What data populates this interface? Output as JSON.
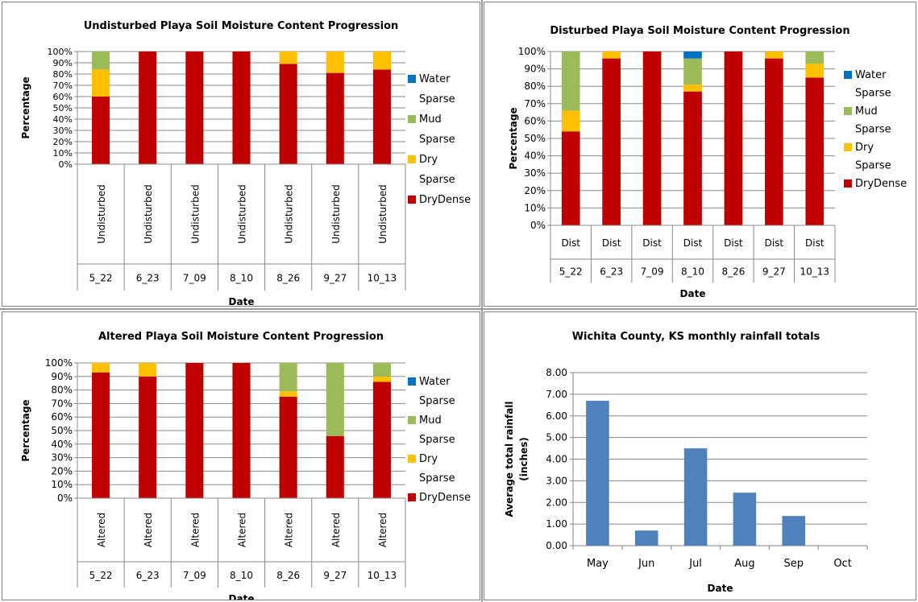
{
  "chart_data": [
    {
      "type": "bar",
      "stacked": true,
      "title": "Undisturbed Playa Soil Moisture Content Progression",
      "xlabel": "Date",
      "ylabel": "Percentage",
      "ylim": [
        0,
        100
      ],
      "yticks": [
        "0%",
        "10%",
        "20%",
        "30%",
        "40%",
        "50%",
        "60%",
        "70%",
        "80%",
        "90%",
        "100%"
      ],
      "group_label": "Undisturbed",
      "categories": [
        "5_22",
        "6_23",
        "7_09",
        "8_10",
        "8_26",
        "9_27",
        "10_13"
      ],
      "legend_position": "right",
      "series": [
        {
          "name": "DryDense",
          "color": "#C00000",
          "values": [
            60,
            100,
            100,
            100,
            89,
            81,
            84
          ]
        },
        {
          "name": "Dry Sparse",
          "color": "#FFC000",
          "values": [
            24,
            0,
            0,
            0,
            11,
            19,
            16
          ]
        },
        {
          "name": "Mud Sparse",
          "color": "#9BBB59",
          "values": [
            16,
            0,
            0,
            0,
            0,
            0,
            0
          ]
        },
        {
          "name": "Water Sparse",
          "color": "#0070C0",
          "values": [
            0,
            0,
            0,
            0,
            0,
            0,
            0
          ]
        }
      ]
    },
    {
      "type": "bar",
      "stacked": true,
      "title": "Disturbed Playa Soil Moisture Content Progression",
      "xlabel": "Date",
      "ylabel": "Percentage",
      "ylim": [
        0,
        100
      ],
      "yticks": [
        "0%",
        "10%",
        "20%",
        "30%",
        "40%",
        "50%",
        "60%",
        "70%",
        "80%",
        "90%",
        "100%"
      ],
      "group_label": "Dist",
      "categories": [
        "5_22",
        "6_23",
        "7_09",
        "8_10",
        "8_26",
        "9_27",
        "10_13"
      ],
      "legend_position": "right",
      "series": [
        {
          "name": "DryDense",
          "color": "#C00000",
          "values": [
            54,
            96,
            100,
            77,
            100,
            96,
            85
          ]
        },
        {
          "name": "Dry Sparse",
          "color": "#FFC000",
          "values": [
            12,
            4,
            0,
            4,
            0,
            4,
            8
          ]
        },
        {
          "name": "Mud Sparse",
          "color": "#9BBB59",
          "values": [
            34,
            0,
            0,
            15,
            0,
            0,
            7
          ]
        },
        {
          "name": "Water Sparse",
          "color": "#0070C0",
          "values": [
            0,
            0,
            0,
            4,
            0,
            0,
            0
          ]
        }
      ]
    },
    {
      "type": "bar",
      "stacked": true,
      "title": "Altered Playa Soil Moisture Content Progression",
      "xlabel": "Date",
      "ylabel": "Percentage",
      "ylim": [
        0,
        100
      ],
      "yticks": [
        "0%",
        "10%",
        "20%",
        "30%",
        "40%",
        "50%",
        "60%",
        "70%",
        "80%",
        "90%",
        "100%"
      ],
      "group_label": "Altered",
      "categories": [
        "5_22",
        "6_23",
        "7_09",
        "8_10",
        "8_26",
        "9_27",
        "10_13"
      ],
      "legend_position": "right",
      "series": [
        {
          "name": "DryDense",
          "color": "#C00000",
          "values": [
            93,
            90,
            100,
            100,
            75,
            46,
            86
          ]
        },
        {
          "name": "Dry Sparse",
          "color": "#FFC000",
          "values": [
            7,
            10,
            0,
            0,
            4,
            0,
            4
          ]
        },
        {
          "name": "Mud Sparse",
          "color": "#9BBB59",
          "values": [
            0,
            0,
            0,
            0,
            21,
            54,
            10
          ]
        },
        {
          "name": "Water Sparse",
          "color": "#0070C0",
          "values": [
            0,
            0,
            0,
            0,
            0,
            0,
            0
          ]
        }
      ]
    },
    {
      "type": "bar",
      "title": "Wichita County, KS monthly rainfall totals",
      "xlabel": "Date",
      "ylabel": "Average total rainfall (inches)",
      "ylim": [
        0,
        8
      ],
      "yticks": [
        "0.00",
        "1.00",
        "2.00",
        "3.00",
        "4.00",
        "5.00",
        "6.00",
        "7.00",
        "8.00"
      ],
      "categories": [
        "May",
        "Jun",
        "Jul",
        "Aug",
        "Sep",
        "Oct"
      ],
      "grid": true,
      "color": "#4F81BD",
      "values": [
        6.7,
        0.7,
        4.5,
        2.45,
        1.37,
        0
      ]
    }
  ]
}
